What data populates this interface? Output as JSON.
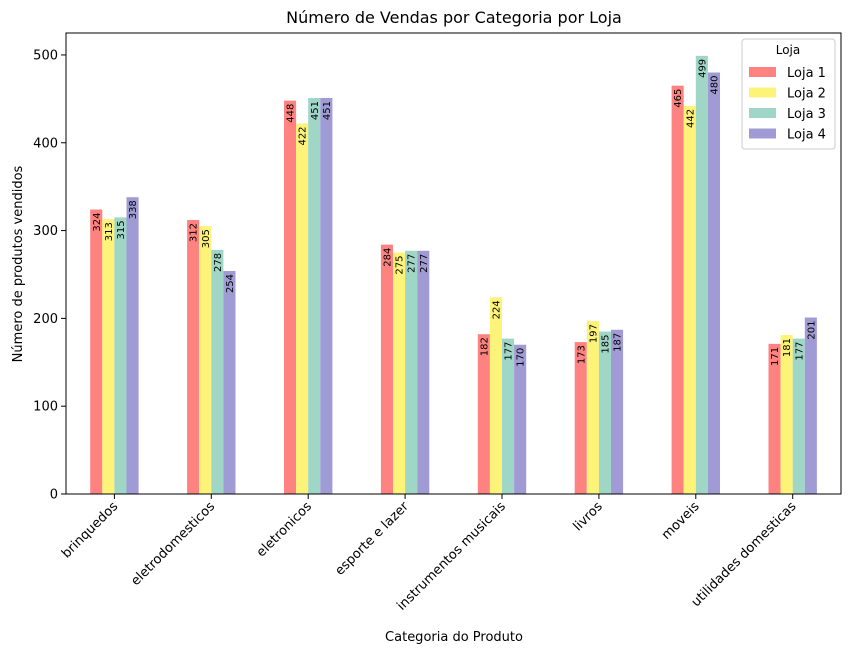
{
  "chart_data": {
    "type": "bar",
    "title": "Número de Vendas por Categoria por Loja",
    "xlabel": "Categoria do Produto",
    "ylabel": "Número de produtos vendidos",
    "ylim": [
      0,
      525
    ],
    "yticks": [
      0,
      100,
      200,
      300,
      400,
      500
    ],
    "grid": false,
    "legend_position": "top-right",
    "legend_title": "Loja",
    "categories": [
      "brinquedos",
      "eletrodomesticos",
      "eletronicos",
      "esporte e lazer",
      "instrumentos musicais",
      "livros",
      "moveis",
      "utilidades domesticas"
    ],
    "series": [
      {
        "name": "Loja 1",
        "color": "#fe8280",
        "values": [
          324,
          312,
          448,
          284,
          182,
          173,
          465,
          171
        ]
      },
      {
        "name": "Loja 2",
        "color": "#fdf378",
        "values": [
          313,
          305,
          422,
          275,
          224,
          197,
          442,
          181
        ]
      },
      {
        "name": "Loja 3",
        "color": "#9fd6c6",
        "values": [
          315,
          278,
          451,
          277,
          177,
          185,
          499,
          177
        ]
      },
      {
        "name": "Loja 4",
        "color": "#a09bd5",
        "values": [
          338,
          254,
          451,
          277,
          170,
          187,
          480,
          201
        ]
      }
    ]
  }
}
